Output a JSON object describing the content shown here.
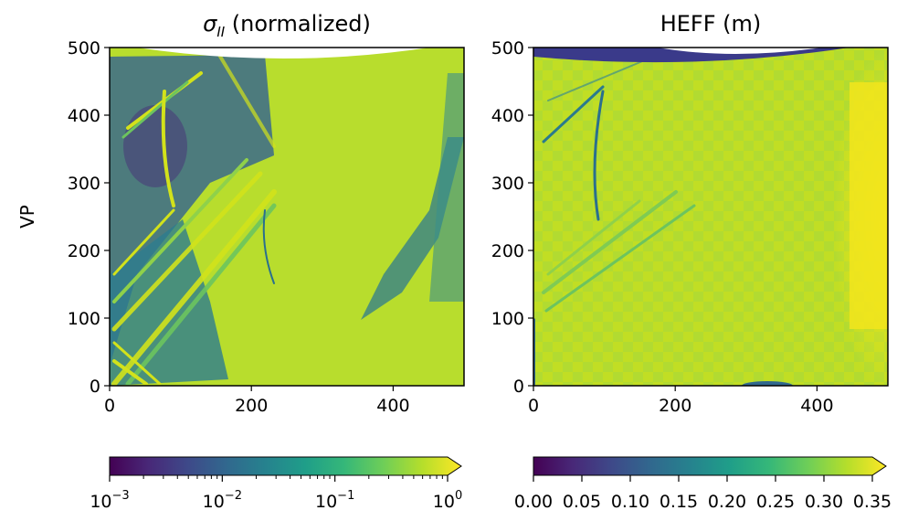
{
  "chart_data": [
    {
      "type": "heatmap",
      "title_symbol": "σ",
      "title_subscript": "II",
      "title_rest": " (normalized)",
      "ylabel": "VP",
      "xlim": [
        0,
        500
      ],
      "ylim": [
        0,
        500
      ],
      "x_ticks": [
        0,
        200,
        400
      ],
      "y_ticks": [
        0,
        100,
        200,
        300,
        400,
        500
      ],
      "colormap": "viridis",
      "colorbar": {
        "scale": "log",
        "range": [
          0.001,
          1
        ],
        "extend": "max",
        "tick_base": "10",
        "tick_exponents": [
          "−3",
          "−2",
          "−1",
          "0"
        ]
      }
    },
    {
      "type": "heatmap",
      "title": "HEFF (m)",
      "xlim": [
        0,
        500
      ],
      "ylim": [
        0,
        500
      ],
      "x_ticks": [
        0,
        200,
        400
      ],
      "y_ticks": [
        0,
        100,
        200,
        300,
        400,
        500
      ],
      "colormap": "viridis",
      "colorbar": {
        "scale": "linear",
        "range": [
          0,
          0.35
        ],
        "extend": "max",
        "tick_labels": [
          "0.00",
          "0.05",
          "0.10",
          "0.15",
          "0.20",
          "0.25",
          "0.30",
          "0.35"
        ]
      }
    }
  ],
  "colors": {
    "viridis_stops": [
      "#440154",
      "#482878",
      "#3e4989",
      "#31688e",
      "#26828e",
      "#1f9e89",
      "#35b779",
      "#6ece58",
      "#b5de2b",
      "#fde725"
    ],
    "left_base": "#b8dd2d",
    "right_base": "#c4df23",
    "stripe_dark": "#2a7a8e",
    "stripe_mid": "#6cc45e",
    "stripe_light": "#d2e21b",
    "max_yellow": "#f5e61c"
  }
}
